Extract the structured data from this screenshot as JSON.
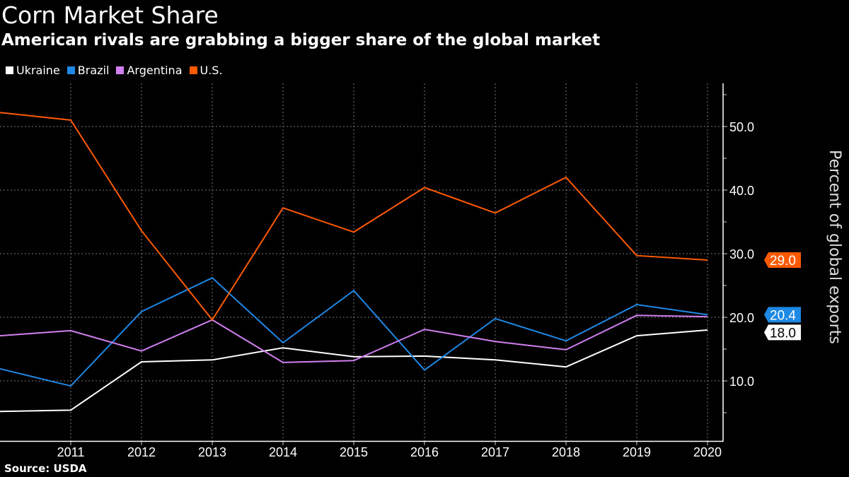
{
  "title": "Corn Market Share",
  "subtitle": "American rivals are grabbing a bigger share of the global market",
  "source": "Source: USDA",
  "chart_data": {
    "type": "line",
    "title": "Corn Market Share",
    "subtitle": "American rivals are grabbing a bigger share of the global market",
    "ylabel": "Percent of global exports",
    "x": [
      2010,
      2011,
      2012,
      2013,
      2014,
      2015,
      2016,
      2017,
      2018,
      2019,
      2020
    ],
    "xticks": [
      "2011",
      "2012",
      "2013",
      "2014",
      "2015",
      "2016",
      "2017",
      "2018",
      "2019",
      "2020"
    ],
    "yticks": [
      "10.0",
      "20.0",
      "30.0",
      "40.0",
      "50.0"
    ],
    "ylim": [
      0.4,
      56.5
    ],
    "xlim": [
      2010,
      2020.2
    ],
    "grid": true,
    "legend": "top-left",
    "y_axis_side": "right",
    "series": [
      {
        "name": "Ukraine",
        "color": "#ffffff",
        "values": [
          5.2,
          5.4,
          13.0,
          13.3,
          15.2,
          13.8,
          13.9,
          13.3,
          12.2,
          17.1,
          18.0
        ],
        "end_label": "18.0"
      },
      {
        "name": "Brazil",
        "color": "#1e88e5",
        "values": [
          11.9,
          9.2,
          20.9,
          26.2,
          16.0,
          24.2,
          11.7,
          19.8,
          16.3,
          22.0,
          20.4
        ],
        "end_label": "20.4"
      },
      {
        "name": "Argentina",
        "color": "#d07ef0",
        "values": [
          17.1,
          17.9,
          14.7,
          19.6,
          12.9,
          13.2,
          18.1,
          16.2,
          14.9,
          20.3,
          20.1
        ]
      },
      {
        "name": "U.S.",
        "color": "#ff5a00",
        "values": [
          52.2,
          51.0,
          33.6,
          19.6,
          37.2,
          33.4,
          40.4,
          36.4,
          42.0,
          29.7,
          29.0
        ],
        "end_label": "29.0"
      }
    ]
  }
}
